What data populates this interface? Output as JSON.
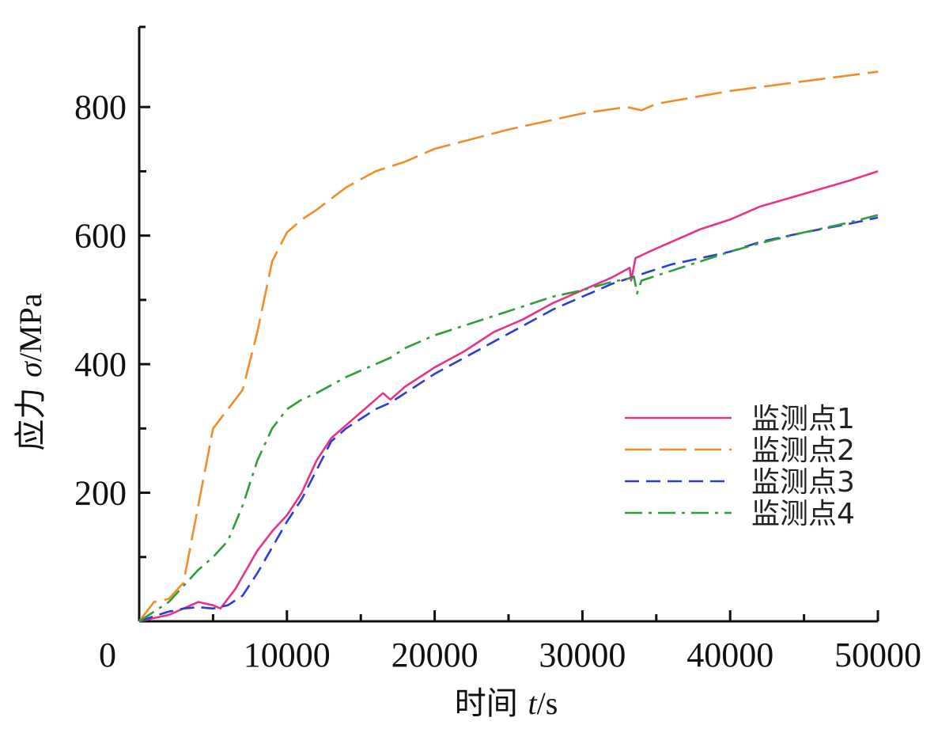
{
  "chart_data": {
    "type": "line",
    "xlabel": {
      "prefix": "时间 ",
      "var": "t",
      "unit": "/s"
    },
    "ylabel": {
      "prefix": "应力 ",
      "var": "σ",
      "unit": "/MPa"
    },
    "xlim": [
      0,
      50000
    ],
    "ylim": [
      0,
      900
    ],
    "x_ticks": [
      0,
      10000,
      20000,
      30000,
      40000,
      50000
    ],
    "y_ticks": [
      200,
      400,
      600,
      800
    ],
    "x_tick_labels": [
      "0",
      "10000",
      "20000",
      "30000",
      "40000",
      "50000"
    ],
    "y_tick_labels": [
      "200",
      "400",
      "600",
      "800"
    ],
    "grid": false,
    "legend_position": "right",
    "series": [
      {
        "name": "监测点1",
        "color": "#e8338a",
        "dash": "solid",
        "x": [
          0,
          2000,
          4000,
          5000,
          5500,
          6500,
          8000,
          9000,
          10000,
          11000,
          12000,
          13000,
          14000,
          15000,
          16000,
          16500,
          17000,
          18000,
          20000,
          22000,
          24000,
          26000,
          28000,
          30000,
          32000,
          33200,
          33300,
          33600,
          35000,
          38000,
          40000,
          42000,
          45000,
          48000,
          50000
        ],
        "y": [
          0,
          10,
          30,
          25,
          20,
          50,
          110,
          140,
          165,
          200,
          250,
          285,
          305,
          325,
          345,
          355,
          345,
          365,
          395,
          420,
          450,
          470,
          495,
          515,
          535,
          550,
          530,
          565,
          580,
          610,
          625,
          645,
          665,
          685,
          700
        ]
      },
      {
        "name": "监测点2",
        "color": "#f28c28",
        "dash": "long-dash",
        "x": [
          0,
          1000,
          2000,
          3000,
          4000,
          5000,
          6000,
          7000,
          8000,
          9000,
          10000,
          11000,
          12000,
          14000,
          16000,
          18000,
          20000,
          25000,
          30000,
          33000,
          34000,
          35000,
          40000,
          45000,
          50000
        ],
        "y": [
          0,
          30,
          35,
          60,
          180,
          300,
          330,
          360,
          450,
          560,
          605,
          625,
          640,
          675,
          700,
          715,
          735,
          765,
          790,
          800,
          795,
          805,
          825,
          840,
          855
        ]
      },
      {
        "name": "监测点3",
        "color": "#2a3dd8",
        "dash": "dash",
        "x": [
          0,
          1000,
          2000,
          3000,
          4000,
          5000,
          6000,
          7000,
          8000,
          9000,
          10000,
          11000,
          12000,
          13000,
          14000,
          15000,
          16000,
          17000,
          18000,
          20000,
          22000,
          24000,
          26000,
          28000,
          30000,
          32000,
          34000,
          36000,
          38000,
          40000,
          42000,
          45000,
          48000,
          50000
        ],
        "y": [
          0,
          8,
          15,
          20,
          22,
          20,
          25,
          40,
          75,
          115,
          155,
          190,
          235,
          280,
          300,
          315,
          330,
          340,
          355,
          385,
          410,
          435,
          460,
          485,
          505,
          525,
          540,
          555,
          565,
          575,
          590,
          605,
          618,
          628
        ]
      },
      {
        "name": "监测点4",
        "color": "#2e9e3a",
        "dash": "dash-dot",
        "x": [
          0,
          1000,
          2000,
          3000,
          4000,
          5000,
          6000,
          7000,
          8000,
          9000,
          10000,
          11000,
          12000,
          14000,
          16000,
          17000,
          18000,
          20000,
          22000,
          24000,
          26000,
          28000,
          30000,
          32000,
          33500,
          33700,
          34000,
          36000,
          38000,
          40000,
          42000,
          45000,
          48000,
          50000
        ],
        "y": [
          0,
          15,
          30,
          55,
          80,
          100,
          125,
          180,
          250,
          300,
          330,
          345,
          355,
          380,
          400,
          410,
          425,
          445,
          460,
          475,
          490,
          505,
          515,
          528,
          535,
          510,
          530,
          545,
          560,
          575,
          588,
          605,
          620,
          632
        ]
      }
    ]
  }
}
